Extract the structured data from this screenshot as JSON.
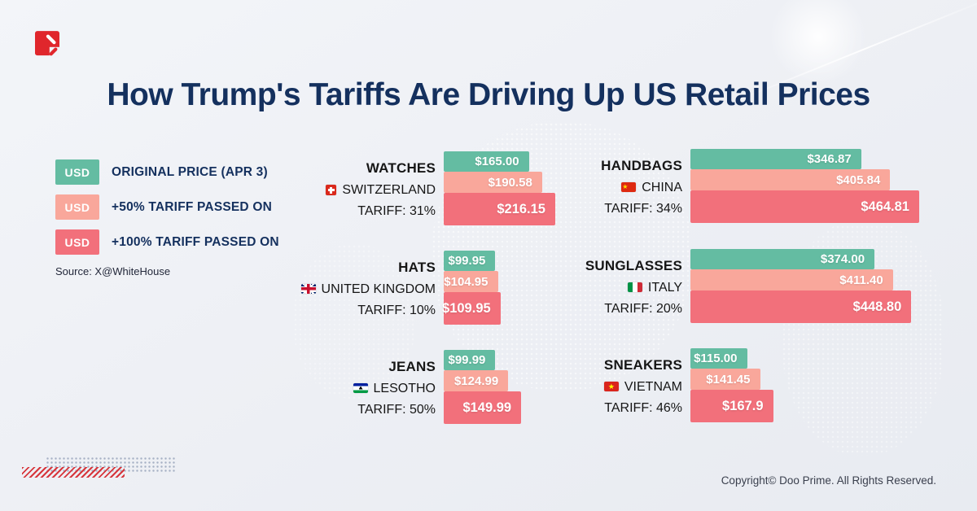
{
  "header": {
    "title": "How Trump's Tariffs Are Driving Up US Retail Prices"
  },
  "legend": {
    "items": [
      {
        "box_label": "USD",
        "label": "ORIGINAL PRICE (APR 3)",
        "color": "#64BCA2"
      },
      {
        "box_label": "USD",
        "label": "+50% TARIFF PASSED ON",
        "color": "#F9A79B"
      },
      {
        "box_label": "USD",
        "label": "+100% TARIFF PASSED ON",
        "color": "#F2707B"
      }
    ],
    "source": "Source: X@WhiteHouse"
  },
  "colors": {
    "original": "#64BCA2",
    "plus50": "#F9A79B",
    "plus100": "#F2707B",
    "title_navy": "#14305E",
    "background": "#EDEFF4"
  },
  "products": [
    {
      "name": "WATCHES",
      "country": "SWITZERLAND",
      "flag": "switzerland",
      "tariff": "TARIFF: 31%",
      "labels": [
        "$165.00",
        "$190.58",
        "$216.15"
      ],
      "values": [
        165.0,
        190.58,
        216.15
      ],
      "column": "left"
    },
    {
      "name": "HATS",
      "country": "UNITED KINGDOM",
      "flag": "united-kingdom",
      "tariff": "TARIFF: 10%",
      "labels": [
        "$99.95",
        "$104.95",
        "$109.95"
      ],
      "values": [
        99.95,
        104.95,
        109.95
      ],
      "column": "left"
    },
    {
      "name": "JEANS",
      "country": "LESOTHO",
      "flag": "lesotho",
      "tariff": "TARIFF: 50%",
      "labels": [
        "$99.99",
        "$124.99",
        "$149.99"
      ],
      "values": [
        99.99,
        124.99,
        149.99
      ],
      "column": "left"
    },
    {
      "name": "HANDBAGS",
      "country": "CHINA",
      "flag": "china",
      "tariff": "TARIFF: 34%",
      "labels": [
        "$346.87",
        "$405.84",
        "$464.81"
      ],
      "values": [
        346.87,
        405.84,
        464.81
      ],
      "column": "right"
    },
    {
      "name": "SUNGLASSES",
      "country": "ITALY",
      "flag": "italy",
      "tariff": "TARIFF: 20%",
      "labels": [
        "$374.00",
        "$411.40",
        "$448.80"
      ],
      "values": [
        374.0,
        411.4,
        448.8
      ],
      "column": "right"
    },
    {
      "name": "SNEAKERS",
      "country": "VIETNAM",
      "flag": "vietnam",
      "tariff": "TARIFF: 46%",
      "labels": [
        "$115.00",
        "$141.45",
        "$167.9"
      ],
      "values": [
        115.0,
        141.45,
        167.9
      ],
      "column": "right"
    }
  ],
  "footer": {
    "copyright": "Copyright© Doo Prime. All Rights Reserved."
  },
  "chart_data": {
    "type": "bar",
    "title": "How Trump's Tariffs Are Driving Up US Retail Prices",
    "legend": [
      "ORIGINAL PRICE (APR 3)",
      "+50% TARIFF PASSED ON",
      "+100% TARIFF PASSED ON"
    ],
    "legend_position": "top-left",
    "orientation": "horizontal",
    "grid": false,
    "categories": [
      "WATCHES",
      "HATS",
      "JEANS",
      "HANDBAGS",
      "SUNGLASSES",
      "SNEAKERS"
    ],
    "groups": [
      {
        "category": "WATCHES",
        "country": "SWITZERLAND",
        "tariff_pct": 31,
        "original_price": 165.0,
        "plus50_price": 190.58,
        "plus100_price": 216.15
      },
      {
        "category": "HATS",
        "country": "UNITED KINGDOM",
        "tariff_pct": 10,
        "original_price": 99.95,
        "plus50_price": 104.95,
        "plus100_price": 109.95
      },
      {
        "category": "JEANS",
        "country": "LESOTHO",
        "tariff_pct": 50,
        "original_price": 99.99,
        "plus50_price": 124.99,
        "plus100_price": 149.99
      },
      {
        "category": "HANDBAGS",
        "country": "CHINA",
        "tariff_pct": 34,
        "original_price": 346.87,
        "plus50_price": 405.84,
        "plus100_price": 464.81
      },
      {
        "category": "SUNGLASSES",
        "country": "ITALY",
        "tariff_pct": 20,
        "original_price": 374.0,
        "plus50_price": 411.4,
        "plus100_price": 448.8
      },
      {
        "category": "SNEAKERS",
        "country": "VIETNAM",
        "tariff_pct": 46,
        "original_price": 115.0,
        "plus50_price": 141.45,
        "plus100_price": 167.9
      }
    ],
    "source": "Source: X@WhiteHouse"
  }
}
